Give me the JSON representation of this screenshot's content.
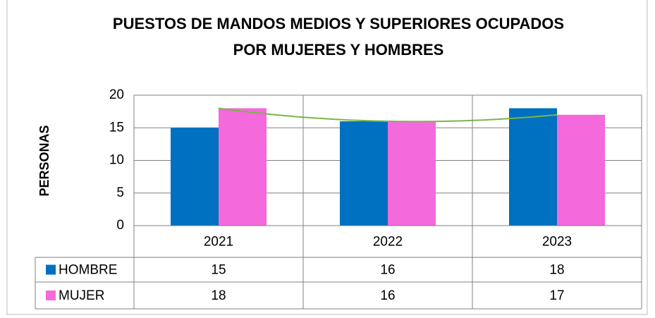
{
  "chart_data": {
    "type": "bar",
    "title": [
      "PUESTOS DE MANDOS MEDIOS Y SUPERIORES OCUPADOS",
      "POR MUJERES Y HOMBRES"
    ],
    "ylabel": "PERSONAS",
    "categories": [
      "2021",
      "2022",
      "2023"
    ],
    "series": [
      {
        "name": "HOMBRE",
        "color": "#0070c0",
        "values": [
          15,
          16,
          18
        ]
      },
      {
        "name": "MUJER",
        "color": "#f469dc",
        "values": [
          18,
          16,
          17
        ]
      }
    ],
    "trendline": {
      "series": 1,
      "color": "#7ab648"
    },
    "ylim": [
      0,
      20
    ],
    "yticks": [
      0,
      5,
      10,
      15,
      20
    ],
    "grid": true
  }
}
